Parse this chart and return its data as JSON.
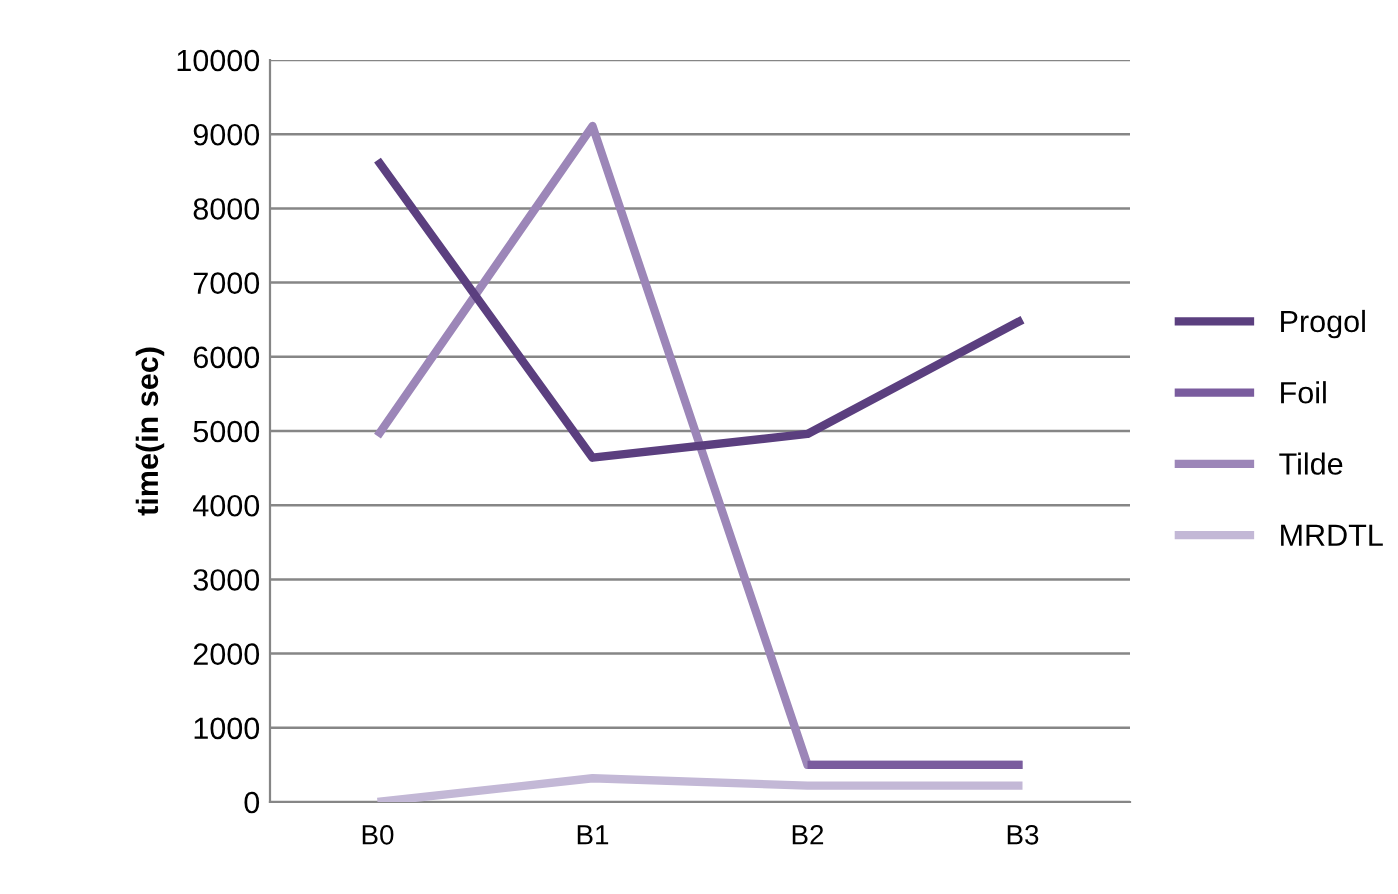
{
  "chart_data": {
    "type": "line",
    "ylabel": "time(in sec)",
    "categories": [
      "B0",
      "B1",
      "B2",
      "B3"
    ],
    "series": [
      {
        "name": "Progol",
        "color": "#5b3f7f",
        "values": [
          8650,
          4640,
          4960,
          6500
        ]
      },
      {
        "name": "Foil",
        "color": "#7a5c9e",
        "values": [
          null,
          null,
          500,
          500
        ]
      },
      {
        "name": "Tilde",
        "color": "#9c86b8",
        "values": [
          4930,
          9110,
          500,
          500
        ]
      },
      {
        "name": "MRDTL",
        "color": "#c3b8d6",
        "values": [
          0,
          320,
          220,
          220
        ]
      }
    ],
    "ylim": [
      0,
      10000
    ],
    "yticks": [
      0,
      1000,
      2000,
      3000,
      4000,
      5000,
      6000,
      7000,
      8000,
      9000,
      10000
    ],
    "grid": "y",
    "legend": "right",
    "marker": "none",
    "line_style": "solid"
  }
}
